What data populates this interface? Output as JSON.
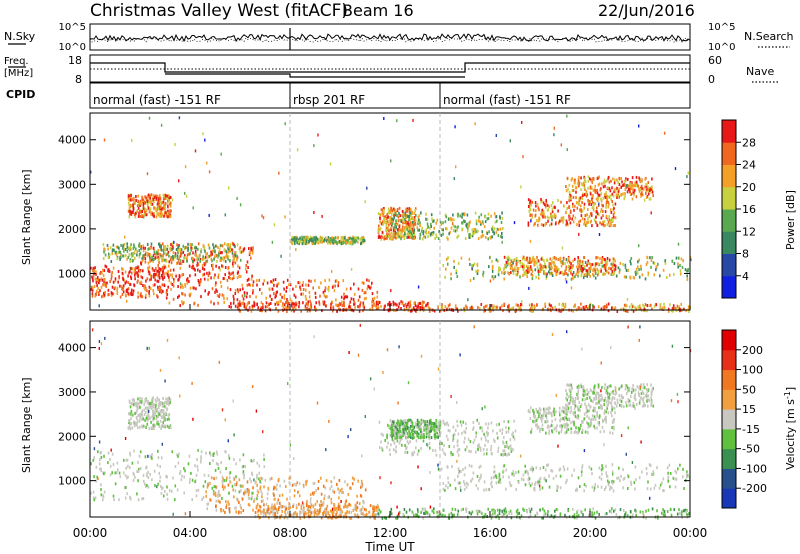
{
  "header": {
    "station": "Christmas Valley West (fitACF)",
    "beam": "Beam 16",
    "date": "22/Jun/2016"
  },
  "sky_panel": {
    "left_label": "N.Sky",
    "right_label": "N.Search",
    "left_ticks": [
      "10^5",
      "10^0"
    ],
    "right_ticks": [
      "10^5",
      "10^0"
    ]
  },
  "freq_panel": {
    "left_label_line1": "Freq.",
    "left_label_line2": "[MHz]",
    "left_ticks": [
      "18",
      "8"
    ],
    "right_label": "Nave",
    "right_ticks": [
      "60",
      "0"
    ]
  },
  "cpid": {
    "label": "CPID",
    "segments": [
      {
        "start_h": 0,
        "text": "normal (fast) -151 RF"
      },
      {
        "start_h": 8,
        "text": "rbsp 201 RF"
      },
      {
        "start_h": 14,
        "text": "normal (fast) -151 RF"
      }
    ]
  },
  "x_axis": {
    "label": "Time UT",
    "ticks": [
      "00:00",
      "04:00",
      "08:00",
      "12:00",
      "16:00",
      "20:00",
      "00:00"
    ],
    "range_h": [
      0,
      24
    ]
  },
  "y_axis": {
    "label": "Slant Range [km]",
    "ticks": [
      "1000",
      "2000",
      "3000",
      "4000"
    ],
    "range_km": [
      180,
      4600
    ]
  },
  "power_colorbar": {
    "label": "Power [dB]",
    "ticks": [
      "4",
      "8",
      "12",
      "16",
      "20",
      "24",
      "28"
    ],
    "colors": [
      "#1020e0",
      "#2848a8",
      "#3a8860",
      "#5aa850",
      "#c8d040",
      "#f4a028",
      "#f06820",
      "#e81818"
    ]
  },
  "velocity_colorbar": {
    "label": "Velocity [m s",
    "label_sup": "-1",
    "label_end": "]",
    "ticks": [
      "200",
      "100",
      "50",
      "15",
      "-15",
      "-50",
      "-100",
      "-200"
    ],
    "colors": [
      "#1838b8",
      "#28508c",
      "#3a9050",
      "#60c040",
      "#c8c8c0",
      "#f0a040",
      "#f07820",
      "#e83018",
      "#e00000"
    ]
  },
  "chart_data": [
    {
      "type": "heatmap",
      "title": "Power [dB]",
      "xlabel": "Time UT",
      "ylabel": "Slant Range [km]",
      "x_range_h": [
        0,
        24
      ],
      "y_range_km": [
        180,
        4600
      ],
      "scatter_regions": [
        {
          "t": [
            0.0,
            3.0
          ],
          "r": [
            500,
            1200
          ],
          "level": "red"
        },
        {
          "t": [
            2.0,
            6.5
          ],
          "r": [
            900,
            1700
          ],
          "level": "red"
        },
        {
          "t": [
            3.0,
            11.5
          ],
          "r": [
            300,
            900
          ],
          "level": "red"
        },
        {
          "t": [
            5.5,
            13.5
          ],
          "r": [
            180,
            400
          ],
          "level": "red"
        },
        {
          "t": [
            0.5,
            6.0
          ],
          "r": [
            1300,
            1700
          ],
          "level": "green"
        },
        {
          "t": [
            1.5,
            3.2
          ],
          "r": [
            2300,
            2800
          ],
          "level": "orange"
        },
        {
          "t": [
            11.5,
            13.0
          ],
          "r": [
            1800,
            2500
          ],
          "level": "orange"
        },
        {
          "t": [
            12.0,
            16.5
          ],
          "r": [
            1800,
            2400
          ],
          "level": "green"
        },
        {
          "t": [
            14.0,
            24.0
          ],
          "r": [
            900,
            1400
          ],
          "level": "green"
        },
        {
          "t": [
            16.5,
            21.0
          ],
          "r": [
            1000,
            1400
          ],
          "level": "orange"
        },
        {
          "t": [
            17.5,
            21.0
          ],
          "r": [
            2100,
            2700
          ],
          "level": "orange"
        },
        {
          "t": [
            19.0,
            22.5
          ],
          "r": [
            2700,
            3200
          ],
          "level": "orange"
        },
        {
          "t": [
            13.5,
            24.0
          ],
          "r": [
            180,
            350
          ],
          "level": "orange"
        },
        {
          "t": [
            8.0,
            11.0
          ],
          "r": [
            1700,
            1850
          ],
          "level": "green"
        }
      ]
    },
    {
      "type": "heatmap",
      "title": "Velocity [m s^-1]",
      "xlabel": "Time UT",
      "ylabel": "Slant Range [km]",
      "x_range_h": [
        0,
        24
      ],
      "y_range_km": [
        180,
        4600
      ],
      "scatter_regions": [
        {
          "t": [
            0.0,
            7.0
          ],
          "r": [
            600,
            1700
          ],
          "level": "gray"
        },
        {
          "t": [
            1.5,
            3.2
          ],
          "r": [
            2200,
            2900
          ],
          "level": "gray"
        },
        {
          "t": [
            4.5,
            11.0
          ],
          "r": [
            300,
            1100
          ],
          "level": "orange"
        },
        {
          "t": [
            6.5,
            11.5
          ],
          "r": [
            180,
            500
          ],
          "level": "orange"
        },
        {
          "t": [
            11.5,
            24.0
          ],
          "r": [
            180,
            400
          ],
          "level": "green"
        },
        {
          "t": [
            11.5,
            17.0
          ],
          "r": [
            1600,
            2400
          ],
          "level": "gray"
        },
        {
          "t": [
            14.0,
            24.0
          ],
          "r": [
            800,
            1400
          ],
          "level": "gray"
        },
        {
          "t": [
            17.5,
            21.0
          ],
          "r": [
            2100,
            2700
          ],
          "level": "gray"
        },
        {
          "t": [
            19.0,
            22.5
          ],
          "r": [
            2700,
            3200
          ],
          "level": "gray"
        },
        {
          "t": [
            12.0,
            14.0
          ],
          "r": [
            2000,
            2400
          ],
          "level": "green"
        }
      ]
    }
  ]
}
